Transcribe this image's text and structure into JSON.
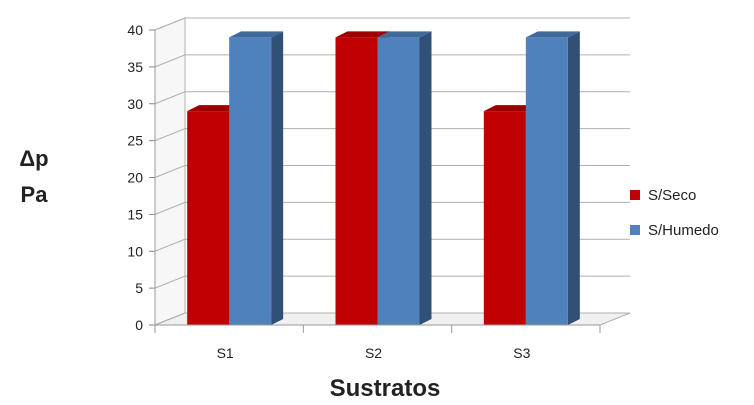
{
  "chart_data": {
    "type": "bar",
    "categories": [
      "S1",
      "S2",
      "S3"
    ],
    "series": [
      {
        "name": "S/Seco",
        "values": [
          29,
          39,
          29
        ],
        "color": "#c00000"
      },
      {
        "name": "S/Humedo",
        "values": [
          39,
          39,
          39
        ],
        "color": "#4f81bd"
      }
    ],
    "yticks": [
      "0",
      "5",
      "10",
      "15",
      "20",
      "25",
      "30",
      "35",
      "40"
    ],
    "ylim": [
      0,
      40
    ],
    "ylabel_line1": "Δp",
    "ylabel_line2": "Pa",
    "xlabel": "Sustratos",
    "grid": true,
    "legend": "right",
    "style": "3d-clustered-column"
  }
}
